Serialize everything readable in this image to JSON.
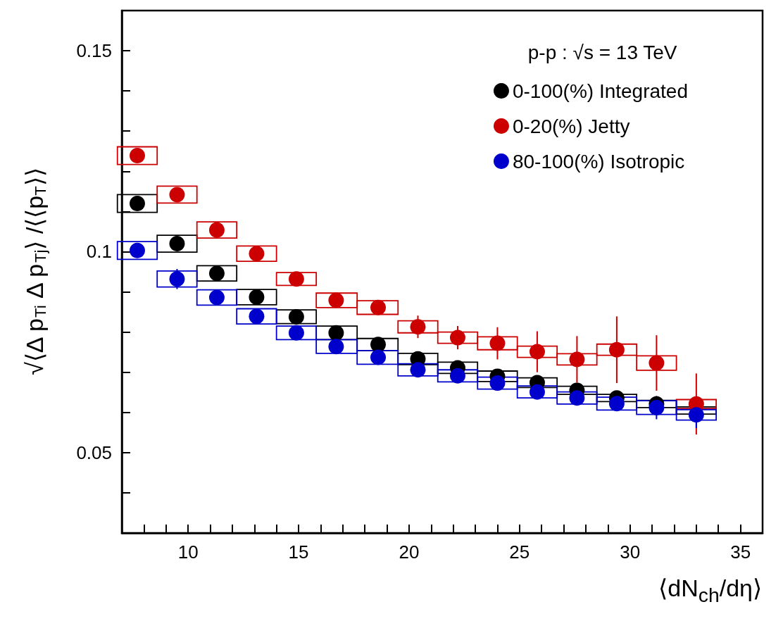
{
  "chart_data": {
    "type": "scatter",
    "xlabel": "⟨dN$_{ch}$/dη⟩",
    "ylabel": "√⟨Δ p$_{Ti}$ Δ p$_{Tj}$⟩ /⟨⟨p$_{T}$⟩⟩",
    "legend_title": "p-p : √s = 13 TeV",
    "legend": "top right",
    "marker": "circle",
    "grid": false,
    "x": [
      7.7,
      9.5,
      11.3,
      13.1,
      14.9,
      16.7,
      18.6,
      20.4,
      22.2,
      24.0,
      25.8,
      27.6,
      29.4,
      31.2,
      33.0
    ],
    "xlim": [
      7,
      36
    ],
    "xticks": [
      {
        "value": 8,
        "label": null
      },
      {
        "value": 9,
        "label": null
      },
      10,
      {
        "value": 11,
        "label": null
      },
      {
        "value": 12,
        "label": null
      },
      {
        "value": 13,
        "label": null
      },
      {
        "value": 14,
        "label": null
      },
      15,
      {
        "value": 16,
        "label": null
      },
      {
        "value": 17,
        "label": null
      },
      {
        "value": 18,
        "label": null
      },
      {
        "value": 19,
        "label": null
      },
      20,
      {
        "value": 21,
        "label": null
      },
      {
        "value": 22,
        "label": null
      },
      {
        "value": 23,
        "label": null
      },
      {
        "value": 24,
        "label": null
      },
      25,
      {
        "value": 26,
        "label": null
      },
      {
        "value": 27,
        "label": null
      },
      {
        "value": 28,
        "label": null
      },
      {
        "value": 29,
        "label": null
      },
      30,
      {
        "value": 31,
        "label": null
      },
      {
        "value": 32,
        "label": null
      },
      {
        "value": 33,
        "label": null
      },
      {
        "value": 34,
        "label": null
      },
      35
    ],
    "ylim": [
      0.03,
      0.16
    ],
    "yticks": [
      {
        "value": 0.04,
        "label": null
      },
      0.05,
      {
        "value": 0.06,
        "label": null
      },
      {
        "value": 0.07,
        "label": null
      },
      {
        "value": 0.08,
        "label": null
      },
      {
        "value": 0.09,
        "label": null
      },
      0.1,
      {
        "value": 0.11,
        "label": null
      },
      {
        "value": 0.12,
        "label": null
      },
      {
        "value": 0.13,
        "label": null
      },
      {
        "value": 0.14,
        "label": null
      },
      0.15
    ],
    "series": [
      {
        "type": "bar",
        "color": "#000000",
        "base": [
          0.1098,
          0.0999,
          0.0927,
          0.0868,
          0.0821,
          0.0781,
          0.0754,
          0.0719,
          0.0697,
          0.0677,
          0.0662,
          0.0645,
          0.0627,
          0.0612,
          0.0596
        ],
        "values": [
          0.0044,
          0.0042,
          0.0038,
          0.0038,
          0.0034,
          0.0034,
          0.003,
          0.0028,
          0.0028,
          0.0026,
          0.0024,
          0.002,
          0.0018,
          0.0018,
          0.0018
        ]
      },
      {
        "type": "bar",
        "color": "#cc0000",
        "base": [
          0.1217,
          0.1121,
          0.1034,
          0.0976,
          0.0916,
          0.0861,
          0.0844,
          0.0798,
          0.0772,
          0.0756,
          0.0737,
          0.0718,
          0.0742,
          0.0705,
          0.061
        ],
        "values": [
          0.0044,
          0.0042,
          0.004,
          0.0038,
          0.0032,
          0.0036,
          0.0034,
          0.003,
          0.0028,
          0.0032,
          0.0028,
          0.0028,
          0.0028,
          0.0036,
          0.0022
        ]
      },
      {
        "type": "bar",
        "color": "#0000cc",
        "base": [
          0.0981,
          0.0912,
          0.0867,
          0.082,
          0.0781,
          0.0747,
          0.072,
          0.0691,
          0.0676,
          0.0658,
          0.0636,
          0.0621,
          0.0606,
          0.0595,
          0.0581
        ],
        "values": [
          0.0044,
          0.004,
          0.0038,
          0.0038,
          0.0034,
          0.0034,
          0.0034,
          0.003,
          0.003,
          0.003,
          0.003,
          0.003,
          0.0032,
          0.0034,
          0.0026
        ]
      },
      {
        "name": "0-100(%) Integrated",
        "color": "#000000",
        "values": [
          0.112,
          0.102,
          0.0946,
          0.0887,
          0.0838,
          0.0798,
          0.0769,
          0.0733,
          0.0711,
          0.069,
          0.0674,
          0.0655,
          0.0636,
          0.0621,
          null
        ]
      },
      {
        "name": "0-20(%) Jetty",
        "color": "#cc0000",
        "values": [
          0.1239,
          0.1142,
          0.1054,
          0.0995,
          0.0932,
          0.0879,
          0.0861,
          0.0813,
          0.0786,
          0.0772,
          0.0751,
          0.0732,
          0.0756,
          0.0723,
          0.0621
        ],
        "errors": [
          0.0005,
          0.0005,
          0.0006,
          0.0006,
          0.0008,
          0.0012,
          0.0017,
          0.0028,
          0.0029,
          0.004,
          0.0051,
          0.0058,
          0.0083,
          0.0069,
          0.0076
        ]
      },
      {
        "name": "80-100(%) Isotropic",
        "color": "#0000cc",
        "values": [
          0.1003,
          0.0932,
          0.0886,
          0.0839,
          0.0798,
          0.0764,
          0.0737,
          0.0706,
          0.0691,
          0.0673,
          0.0651,
          0.0636,
          0.0622,
          0.0612,
          0.0594
        ],
        "errors": [
          0.001,
          0.0025,
          0.0008,
          0.001,
          0.0008,
          0.0008,
          0.0008,
          0.001,
          0.001,
          0.001,
          0.0012,
          0.0012,
          0.0014,
          0.0029,
          0.0033
        ]
      }
    ]
  }
}
